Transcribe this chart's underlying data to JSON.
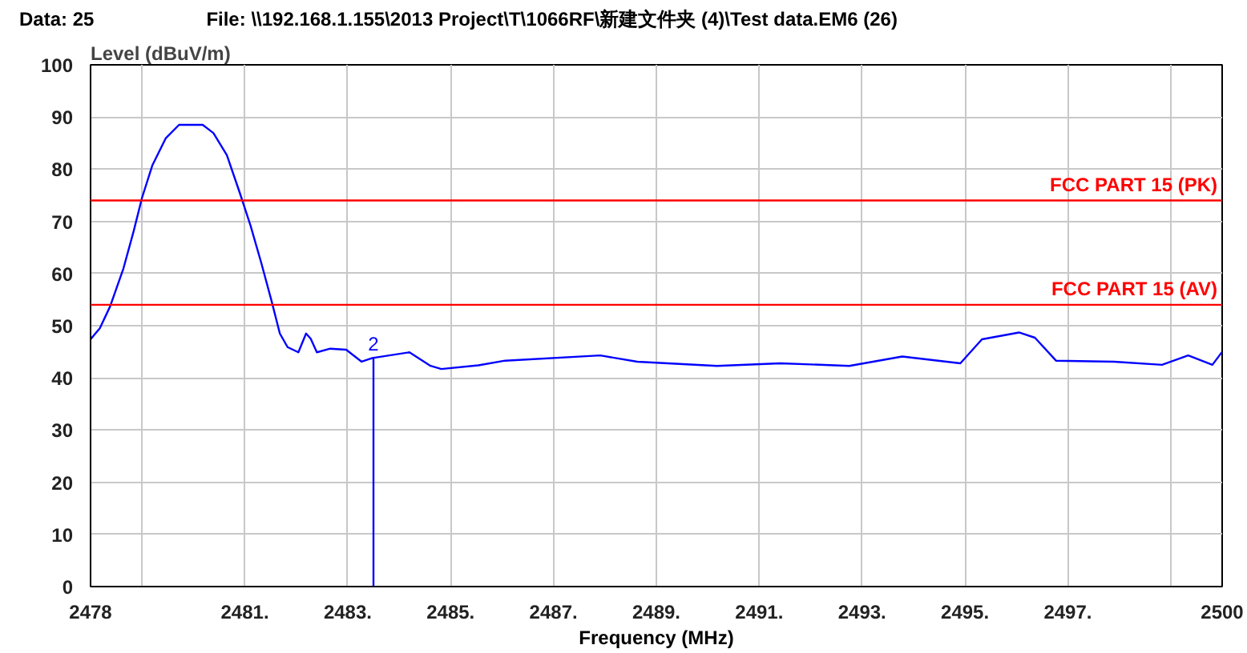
{
  "chart_data": {
    "type": "line",
    "annotations": [
      "Data: 25",
      "File: \\\\192.168.1.155\\2013 Project\\T\\1066RF\\新建文件夹 (4)\\Test data.EM6  (26)",
      {
        "text": "2",
        "x": 2483.5,
        "y": 44
      }
    ],
    "xlabel": "Frequency (MHz)",
    "ylabel": "Level (dBuV/m)",
    "xlim": [
      2478,
      2500
    ],
    "ylim": [
      0,
      100
    ],
    "xticks": [
      {
        "value": 2478,
        "label": "2478"
      },
      {
        "value": 2479,
        "label": null
      },
      {
        "value": 2481,
        "label": "2481."
      },
      {
        "value": 2483,
        "label": "2483."
      },
      {
        "value": 2485,
        "label": "2485."
      },
      {
        "value": 2487,
        "label": "2487."
      },
      {
        "value": 2489,
        "label": "2489."
      },
      {
        "value": 2491,
        "label": "2491."
      },
      {
        "value": 2493,
        "label": "2493."
      },
      {
        "value": 2495,
        "label": "2495."
      },
      {
        "value": 2497,
        "label": "2497."
      },
      {
        "value": 2499,
        "label": null
      },
      {
        "value": 2500,
        "label": "2500"
      }
    ],
    "yticks": [
      0,
      10,
      20,
      30,
      40,
      50,
      60,
      70,
      80,
      90,
      100
    ],
    "grid": true,
    "marker": "none",
    "line_style": "solid",
    "ref_lines": [
      {
        "axis": "y",
        "value": 74,
        "label": "FCC PART 15 (PK)",
        "color": "#ff0000"
      },
      {
        "axis": "y",
        "value": 54,
        "label": "FCC PART 15 (AV)",
        "color": "#ff0000"
      }
    ],
    "series": [
      {
        "color": "#0000ff",
        "x": [
          2478.0,
          2478.18,
          2478.38,
          2478.64,
          2478.84,
          2479.0,
          2479.2,
          2479.46,
          2479.72,
          2480.18,
          2480.39,
          2480.65,
          2480.9,
          2481.11,
          2481.32,
          2481.52,
          2481.68,
          2481.83,
          2482.04,
          2482.19,
          2482.28,
          2482.4,
          2482.66,
          2482.97,
          2483.27,
          2483.48,
          2484.2,
          2484.61,
          2484.82,
          2485.54,
          2486.06,
          2487.91,
          2488.63,
          2490.18,
          2491.41,
          2492.75,
          2493.78,
          2494.91,
          2495.33,
          2496.05,
          2496.36,
          2496.77,
          2497.9,
          2498.83,
          2499.34,
          2499.81,
          2500.0
        ],
        "values": [
          47.4,
          49.5,
          53.7,
          61,
          68.2,
          74.5,
          80.7,
          85.9,
          88.5,
          88.5,
          86.9,
          82.7,
          75.5,
          69.2,
          62,
          54.7,
          48.5,
          45.9,
          44.9,
          48.5,
          47.5,
          44.9,
          45.6,
          45.4,
          43.1,
          43.8,
          44.9,
          42.3,
          41.7,
          42.4,
          43.3,
          44.3,
          43.1,
          42.3,
          42.8,
          42.3,
          44.1,
          42.8,
          47.4,
          48.7,
          47.7,
          43.3,
          43.1,
          42.5,
          44.3,
          42.5,
          45
        ]
      }
    ]
  }
}
